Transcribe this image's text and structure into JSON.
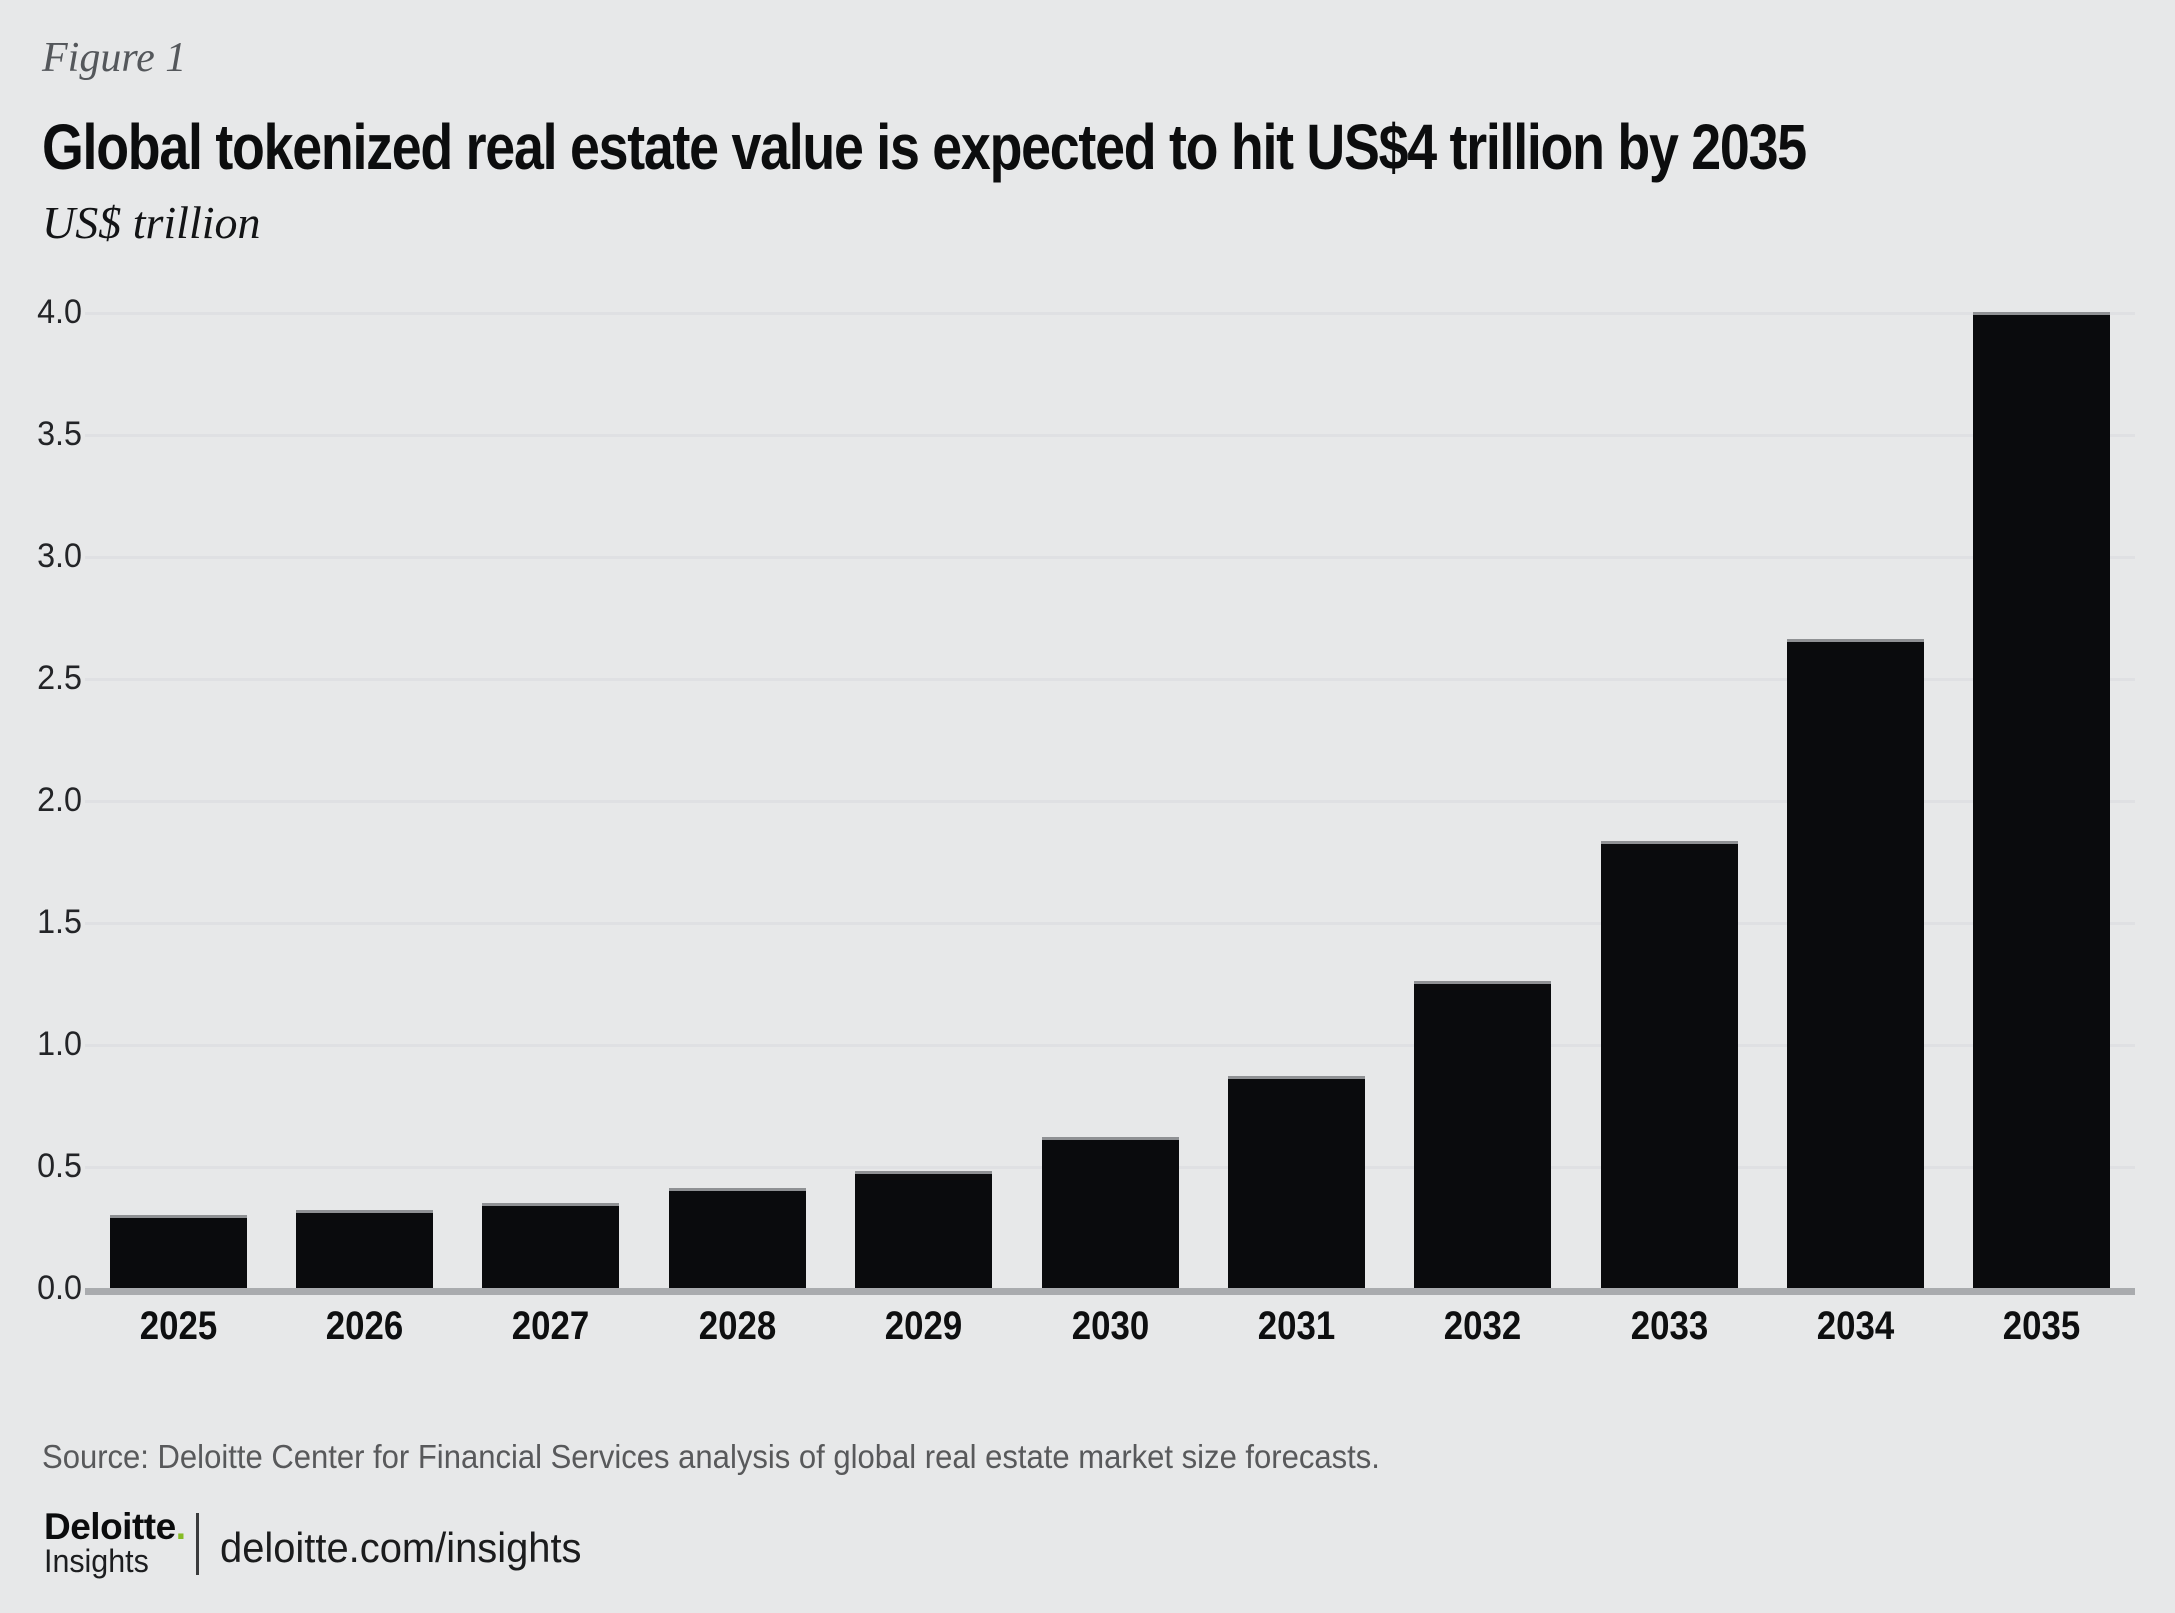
{
  "figure_label": "Figure 1",
  "title": "Global tokenized real estate value is expected to hit US$4 trillion by 2035",
  "units_label": "US$ trillion",
  "source_line": "Source: Deloitte Center for Financial Services analysis of global real estate market size forecasts.",
  "footer": {
    "brand": "Deloitte",
    "brand_dot": ".",
    "brand_sub": "Insights",
    "url": "deloitte.com/insights"
  },
  "colors": {
    "background": "#e7e8e9",
    "bar": "#0a0b0d",
    "bar_top_edge": "#8f9194",
    "gridline": "#dfe0e3",
    "axis_line": "#a9abae",
    "brand_green": "#86bc25"
  },
  "chart_data": {
    "type": "bar",
    "title": "Global tokenized real estate value is expected to hit US$4 trillion by 2035",
    "ylabel": "US$ trillion",
    "xlabel": "",
    "categories": [
      "2025",
      "2026",
      "2027",
      "2028",
      "2029",
      "2030",
      "2031",
      "2032",
      "2033",
      "2034",
      "2035"
    ],
    "values": [
      0.3,
      0.32,
      0.35,
      0.41,
      0.48,
      0.62,
      0.87,
      1.26,
      1.83,
      2.66,
      4.0
    ],
    "ylim": [
      0.0,
      4.0
    ],
    "ytick_step": 0.5,
    "ytick_labels": [
      "0.0",
      "0.5",
      "1.0",
      "1.5",
      "2.0",
      "2.5",
      "3.0",
      "3.5",
      "4.0"
    ],
    "grid": "on",
    "legend": "none",
    "bar_color": "#0a0b0d"
  }
}
